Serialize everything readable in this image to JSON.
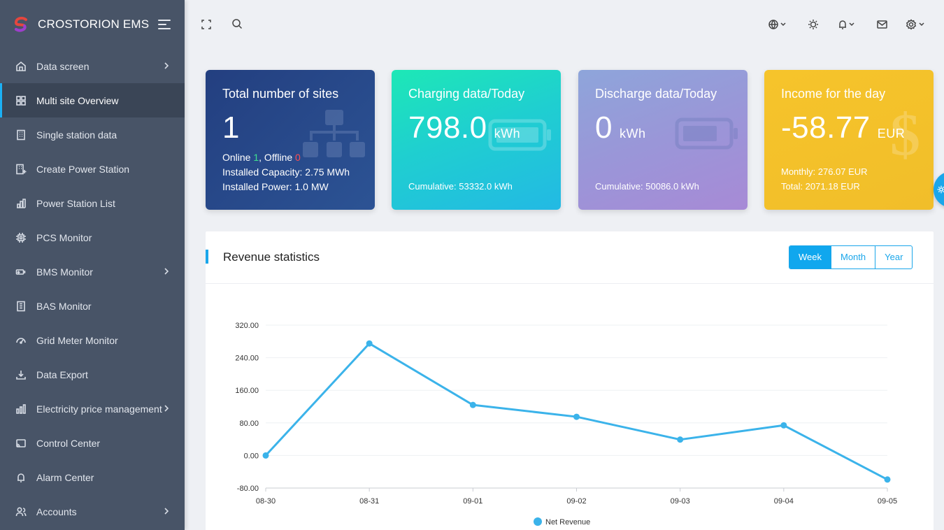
{
  "app": {
    "title": "CROSTORION EMS"
  },
  "sidebar": {
    "items": [
      {
        "label": "Data screen",
        "icon": "home-icon",
        "chevron": true
      },
      {
        "label": "Multi site Overview",
        "icon": "grid-icon",
        "chevron": false,
        "active": true
      },
      {
        "label": "Single station data",
        "icon": "building-icon",
        "chevron": false
      },
      {
        "label": "Create Power Station",
        "icon": "building-plus-icon",
        "chevron": false
      },
      {
        "label": "Power Station List",
        "icon": "chart-city-icon",
        "chevron": false
      },
      {
        "label": "PCS Monitor",
        "icon": "chip-icon",
        "chevron": false
      },
      {
        "label": "BMS Monitor",
        "icon": "battery-flow-icon",
        "chevron": true
      },
      {
        "label": "BAS Monitor",
        "icon": "building-list-icon",
        "chevron": false
      },
      {
        "label": "Grid Meter Monitor",
        "icon": "gauge-icon",
        "chevron": false
      },
      {
        "label": "Data Export",
        "icon": "download-icon",
        "chevron": false
      },
      {
        "label": "Electricity price management",
        "icon": "bar-chart-icon",
        "chevron": true
      },
      {
        "label": "Control Center",
        "icon": "cast-icon",
        "chevron": false
      },
      {
        "label": "Alarm Center",
        "icon": "bell-icon",
        "chevron": false
      },
      {
        "label": "Accounts",
        "icon": "users-icon",
        "chevron": true
      }
    ]
  },
  "topbar": {
    "icons": [
      "fullscreen-icon",
      "search-icon",
      "globe-icon",
      "sun-icon",
      "bell-icon",
      "mail-icon",
      "gear-icon"
    ]
  },
  "cards": {
    "sites": {
      "title": "Total number of sites",
      "value": "1",
      "online_label": "Online ",
      "online_value": "1",
      "offline_label": ", Offline ",
      "offline_value": "0",
      "capacity": "Installed Capacity: 2.75 MWh",
      "power": "Installed Power: 1.0 MW"
    },
    "charging": {
      "title": "Charging data/Today",
      "value": "798.0",
      "unit": "kWh",
      "cumulative": "Cumulative: 53332.0 kWh"
    },
    "discharge": {
      "title": "Discharge data/Today",
      "value": "0",
      "unit": "kWh",
      "cumulative": "Cumulative: 50086.0 kWh"
    },
    "income": {
      "title": "Income for the day",
      "value": "-58.77",
      "unit": "EUR",
      "monthly": "Monthly: 276.07 EUR",
      "total": "Total: 2071.18 EUR"
    }
  },
  "revenue": {
    "title": "Revenue statistics",
    "tabs": [
      {
        "label": "Week",
        "active": true
      },
      {
        "label": "Month"
      },
      {
        "label": "Year"
      }
    ]
  },
  "colors": {
    "accent": "#1aa6ea",
    "line": "#3bb3ea",
    "online": "#3ee08f",
    "offline": "#ff4d4f"
  },
  "chart_data": {
    "type": "line",
    "x": [
      "08-30",
      "08-31",
      "09-01",
      "09-02",
      "09-03",
      "09-04",
      "09-05"
    ],
    "series": [
      {
        "name": "Net Revenue",
        "values": [
          0,
          275,
          124,
          95,
          39,
          74,
          -59
        ]
      }
    ],
    "yticks": [
      "320.00",
      "240.00",
      "160.00",
      "80.00",
      "0.00",
      "-80.00"
    ],
    "ylim": [
      -80,
      320
    ],
    "legend": "bottom-center",
    "grid": true
  }
}
